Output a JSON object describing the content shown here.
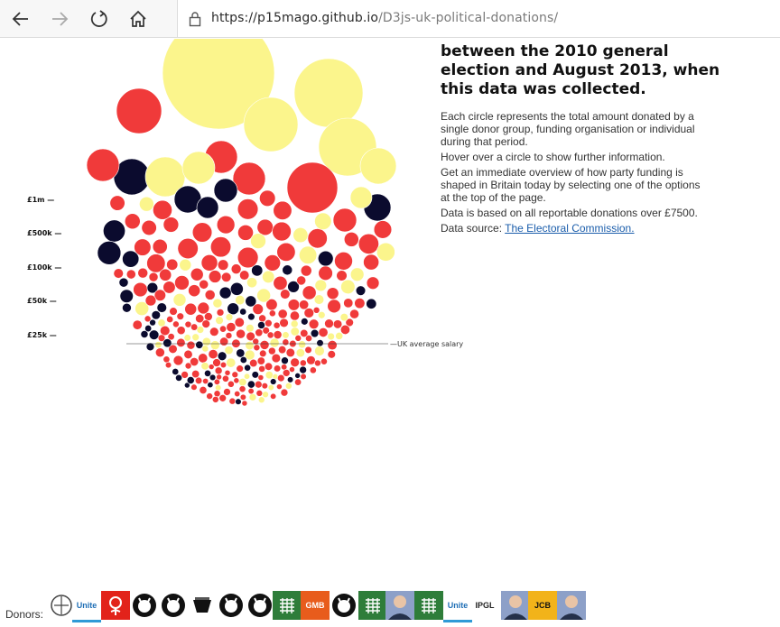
{
  "browser": {
    "url_host": "https://p15mago.github.io",
    "url_path": "/D3js-uk-political-donations/",
    "buttons": [
      "back-icon",
      "forward-icon",
      "refresh-icon",
      "home-icon"
    ]
  },
  "scale": {
    "labels": [
      "£1m —",
      "£500k —",
      "£100k —",
      "£50k —",
      "£25k —"
    ],
    "salary_label": "—UK average salary"
  },
  "headline": "between the 2010 general election and August 2013, when this data was collected.",
  "description": {
    "p1": "Each circle represents the total amount donated by a single donor group, funding organisation or individual during that period.",
    "p2": "Hover over a circle to show further information.",
    "p3": "Get an immediate overview of how party funding is shaped in Britain today by selecting one of the options at the top of the page.",
    "p4": "Data is based on all reportable donations over £7500.",
    "p5_prefix": "Data source: ",
    "p5_link": "The Electoral Commission."
  },
  "colors": {
    "conservative": "#0b0b2e",
    "labour": "#f03a3a",
    "libdem": "#fbf58c",
    "salary_line": "#333333"
  },
  "donors": {
    "label": "Donors:",
    "logos": [
      {
        "icon": "ministry-icon",
        "text": ""
      },
      {
        "icon": "unite-icon",
        "text": "Unite"
      },
      {
        "icon": "labour-rose-icon",
        "text": ""
      },
      {
        "icon": "github-icon",
        "text": ""
      },
      {
        "icon": "github-icon",
        "text": ""
      },
      {
        "icon": "swag-icon",
        "text": ""
      },
      {
        "icon": "github-icon",
        "text": ""
      },
      {
        "icon": "github-icon",
        "text": ""
      },
      {
        "icon": "portcullis-icon",
        "text": ""
      },
      {
        "icon": "gmb-icon",
        "text": "GMB"
      },
      {
        "icon": "github-icon",
        "text": ""
      },
      {
        "icon": "portcullis-icon",
        "text": ""
      },
      {
        "icon": "person-photo-icon",
        "text": ""
      },
      {
        "icon": "portcullis-icon",
        "text": ""
      },
      {
        "icon": "unite-icon",
        "text": "Unite"
      },
      {
        "icon": "ipgl-icon",
        "text": "IPGL"
      },
      {
        "icon": "person-photo-icon",
        "text": ""
      },
      {
        "icon": "jcb-icon",
        "text": "JCB"
      },
      {
        "icon": "person-photo-icon",
        "text": ""
      }
    ]
  }
}
